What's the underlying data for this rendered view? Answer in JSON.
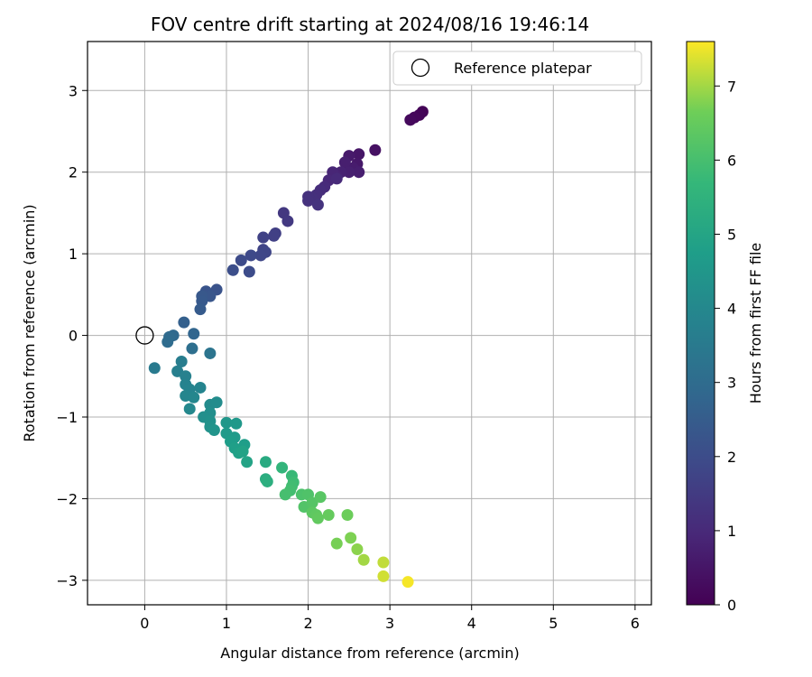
{
  "chart_data": {
    "type": "scatter",
    "title": "FOV centre drift starting at 2024/08/16 19:46:14",
    "xlabel": "Angular distance from reference (arcmin)",
    "ylabel": "Rotation from reference (arcmin)",
    "xlim": [
      -0.7,
      6.2
    ],
    "ylim": [
      -3.3,
      3.6
    ],
    "xticks": [
      0,
      1,
      2,
      3,
      4,
      5,
      6
    ],
    "yticks": [
      -3,
      -2,
      -1,
      0,
      1,
      2,
      3
    ],
    "grid": true,
    "legend": {
      "placement": "top-right",
      "entries": [
        {
          "label": "Reference platepar",
          "marker": "open-circle"
        }
      ]
    },
    "reference_point": {
      "label": "Reference platepar",
      "x": 0,
      "y": 0
    },
    "colorbar": {
      "label": "Hours from first FF file",
      "colormap": "viridis",
      "range": [
        0,
        7.6
      ],
      "ticks": [
        0,
        1,
        2,
        3,
        4,
        5,
        6,
        7
      ]
    },
    "series": [
      {
        "points": [
          {
            "x": 3.4,
            "y": 2.74,
            "t": 0.05
          },
          {
            "x": 3.36,
            "y": 2.7,
            "t": 0.1
          },
          {
            "x": 3.3,
            "y": 2.67,
            "t": 0.15
          },
          {
            "x": 3.25,
            "y": 2.64,
            "t": 0.2
          },
          {
            "x": 2.82,
            "y": 2.27,
            "t": 0.4
          },
          {
            "x": 2.62,
            "y": 2.22,
            "t": 0.5
          },
          {
            "x": 2.6,
            "y": 2.1,
            "t": 0.55
          },
          {
            "x": 2.5,
            "y": 2.2,
            "t": 0.6
          },
          {
            "x": 2.55,
            "y": 2.05,
            "t": 0.65
          },
          {
            "x": 2.62,
            "y": 2.0,
            "t": 0.7
          },
          {
            "x": 2.45,
            "y": 2.12,
            "t": 0.72
          },
          {
            "x": 2.5,
            "y": 2.0,
            "t": 0.75
          },
          {
            "x": 2.4,
            "y": 2.0,
            "t": 0.8
          },
          {
            "x": 2.35,
            "y": 1.95,
            "t": 0.85
          },
          {
            "x": 2.3,
            "y": 2.0,
            "t": 0.9
          },
          {
            "x": 2.25,
            "y": 1.9,
            "t": 0.95
          },
          {
            "x": 2.35,
            "y": 1.92,
            "t": 1.0
          },
          {
            "x": 2.2,
            "y": 1.82,
            "t": 1.05
          },
          {
            "x": 2.15,
            "y": 1.78,
            "t": 1.1
          },
          {
            "x": 2.1,
            "y": 1.72,
            "t": 1.15
          },
          {
            "x": 2.05,
            "y": 1.68,
            "t": 1.2
          },
          {
            "x": 2.0,
            "y": 1.7,
            "t": 1.22
          },
          {
            "x": 2.0,
            "y": 1.65,
            "t": 1.25
          },
          {
            "x": 2.12,
            "y": 1.6,
            "t": 1.28
          },
          {
            "x": 1.7,
            "y": 1.5,
            "t": 1.4
          },
          {
            "x": 1.75,
            "y": 1.4,
            "t": 1.45
          },
          {
            "x": 1.6,
            "y": 1.25,
            "t": 1.6
          },
          {
            "x": 1.58,
            "y": 1.22,
            "t": 1.65
          },
          {
            "x": 1.45,
            "y": 1.2,
            "t": 1.7
          },
          {
            "x": 1.45,
            "y": 1.05,
            "t": 1.75
          },
          {
            "x": 1.48,
            "y": 1.02,
            "t": 1.8
          },
          {
            "x": 1.42,
            "y": 0.98,
            "t": 1.85
          },
          {
            "x": 1.3,
            "y": 0.98,
            "t": 1.9
          },
          {
            "x": 1.18,
            "y": 0.92,
            "t": 1.95
          },
          {
            "x": 1.28,
            "y": 0.78,
            "t": 2.0
          },
          {
            "x": 1.08,
            "y": 0.8,
            "t": 2.05
          },
          {
            "x": 0.88,
            "y": 0.56,
            "t": 2.2
          },
          {
            "x": 0.75,
            "y": 0.54,
            "t": 2.25
          },
          {
            "x": 0.8,
            "y": 0.48,
            "t": 2.3
          },
          {
            "x": 0.7,
            "y": 0.48,
            "t": 2.35
          },
          {
            "x": 0.7,
            "y": 0.42,
            "t": 2.4
          },
          {
            "x": 0.68,
            "y": 0.32,
            "t": 2.45
          },
          {
            "x": 0.48,
            "y": 0.16,
            "t": 2.6
          },
          {
            "x": 0.6,
            "y": 0.02,
            "t": 2.8
          },
          {
            "x": 0.35,
            "y": 0.0,
            "t": 2.9
          },
          {
            "x": 0.3,
            "y": -0.02,
            "t": 2.95
          },
          {
            "x": 0.28,
            "y": -0.08,
            "t": 3.0
          },
          {
            "x": 0.58,
            "y": -0.16,
            "t": 3.1
          },
          {
            "x": 0.8,
            "y": -0.22,
            "t": 3.3
          },
          {
            "x": 0.12,
            "y": -0.4,
            "t": 3.5
          },
          {
            "x": 0.45,
            "y": -0.32,
            "t": 3.6
          },
          {
            "x": 0.4,
            "y": -0.44,
            "t": 3.7
          },
          {
            "x": 0.5,
            "y": -0.5,
            "t": 3.75
          },
          {
            "x": 0.5,
            "y": -0.6,
            "t": 3.8
          },
          {
            "x": 0.55,
            "y": -0.66,
            "t": 3.85
          },
          {
            "x": 0.68,
            "y": -0.64,
            "t": 3.88
          },
          {
            "x": 0.5,
            "y": -0.74,
            "t": 3.9
          },
          {
            "x": 0.6,
            "y": -0.76,
            "t": 3.95
          },
          {
            "x": 0.55,
            "y": -0.9,
            "t": 4.0
          },
          {
            "x": 0.8,
            "y": -0.85,
            "t": 4.1
          },
          {
            "x": 0.88,
            "y": -0.82,
            "t": 4.15
          },
          {
            "x": 0.8,
            "y": -0.95,
            "t": 4.2
          },
          {
            "x": 0.72,
            "y": -1.0,
            "t": 4.25
          },
          {
            "x": 0.8,
            "y": -1.05,
            "t": 4.3
          },
          {
            "x": 0.8,
            "y": -1.12,
            "t": 4.35
          },
          {
            "x": 0.85,
            "y": -1.16,
            "t": 4.4
          },
          {
            "x": 1.0,
            "y": -1.07,
            "t": 4.5
          },
          {
            "x": 1.12,
            "y": -1.08,
            "t": 4.55
          },
          {
            "x": 1.0,
            "y": -1.2,
            "t": 4.6
          },
          {
            "x": 1.1,
            "y": -1.25,
            "t": 4.65
          },
          {
            "x": 1.05,
            "y": -1.3,
            "t": 4.7
          },
          {
            "x": 1.22,
            "y": -1.34,
            "t": 4.75
          },
          {
            "x": 1.1,
            "y": -1.38,
            "t": 4.8
          },
          {
            "x": 1.15,
            "y": -1.44,
            "t": 4.85
          },
          {
            "x": 1.2,
            "y": -1.42,
            "t": 4.9
          },
          {
            "x": 1.25,
            "y": -1.55,
            "t": 4.95
          },
          {
            "x": 1.48,
            "y": -1.55,
            "t": 5.2
          },
          {
            "x": 1.48,
            "y": -1.76,
            "t": 5.3
          },
          {
            "x": 1.5,
            "y": -1.79,
            "t": 5.35
          },
          {
            "x": 1.68,
            "y": -1.62,
            "t": 5.6
          },
          {
            "x": 1.8,
            "y": -1.72,
            "t": 5.75
          },
          {
            "x": 1.82,
            "y": -1.8,
            "t": 5.85
          },
          {
            "x": 1.8,
            "y": -1.85,
            "t": 5.9
          },
          {
            "x": 1.78,
            "y": -1.9,
            "t": 5.95
          },
          {
            "x": 1.72,
            "y": -1.95,
            "t": 6.0
          },
          {
            "x": 1.92,
            "y": -1.95,
            "t": 6.1
          },
          {
            "x": 2.0,
            "y": -1.95,
            "t": 6.15
          },
          {
            "x": 1.95,
            "y": -2.1,
            "t": 6.2
          },
          {
            "x": 2.05,
            "y": -2.05,
            "t": 6.25
          },
          {
            "x": 2.15,
            "y": -1.98,
            "t": 6.3
          },
          {
            "x": 2.05,
            "y": -2.17,
            "t": 6.35
          },
          {
            "x": 2.1,
            "y": -2.2,
            "t": 6.4
          },
          {
            "x": 2.12,
            "y": -2.24,
            "t": 6.45
          },
          {
            "x": 2.25,
            "y": -2.2,
            "t": 6.5
          },
          {
            "x": 2.48,
            "y": -2.2,
            "t": 6.6
          },
          {
            "x": 2.35,
            "y": -2.55,
            "t": 6.7
          },
          {
            "x": 2.52,
            "y": -2.48,
            "t": 6.75
          },
          {
            "x": 2.6,
            "y": -2.62,
            "t": 6.85
          },
          {
            "x": 2.68,
            "y": -2.75,
            "t": 7.0
          },
          {
            "x": 2.92,
            "y": -2.78,
            "t": 7.2
          },
          {
            "x": 2.92,
            "y": -2.95,
            "t": 7.3
          },
          {
            "x": 3.22,
            "y": -3.02,
            "t": 7.55
          }
        ]
      }
    ]
  }
}
